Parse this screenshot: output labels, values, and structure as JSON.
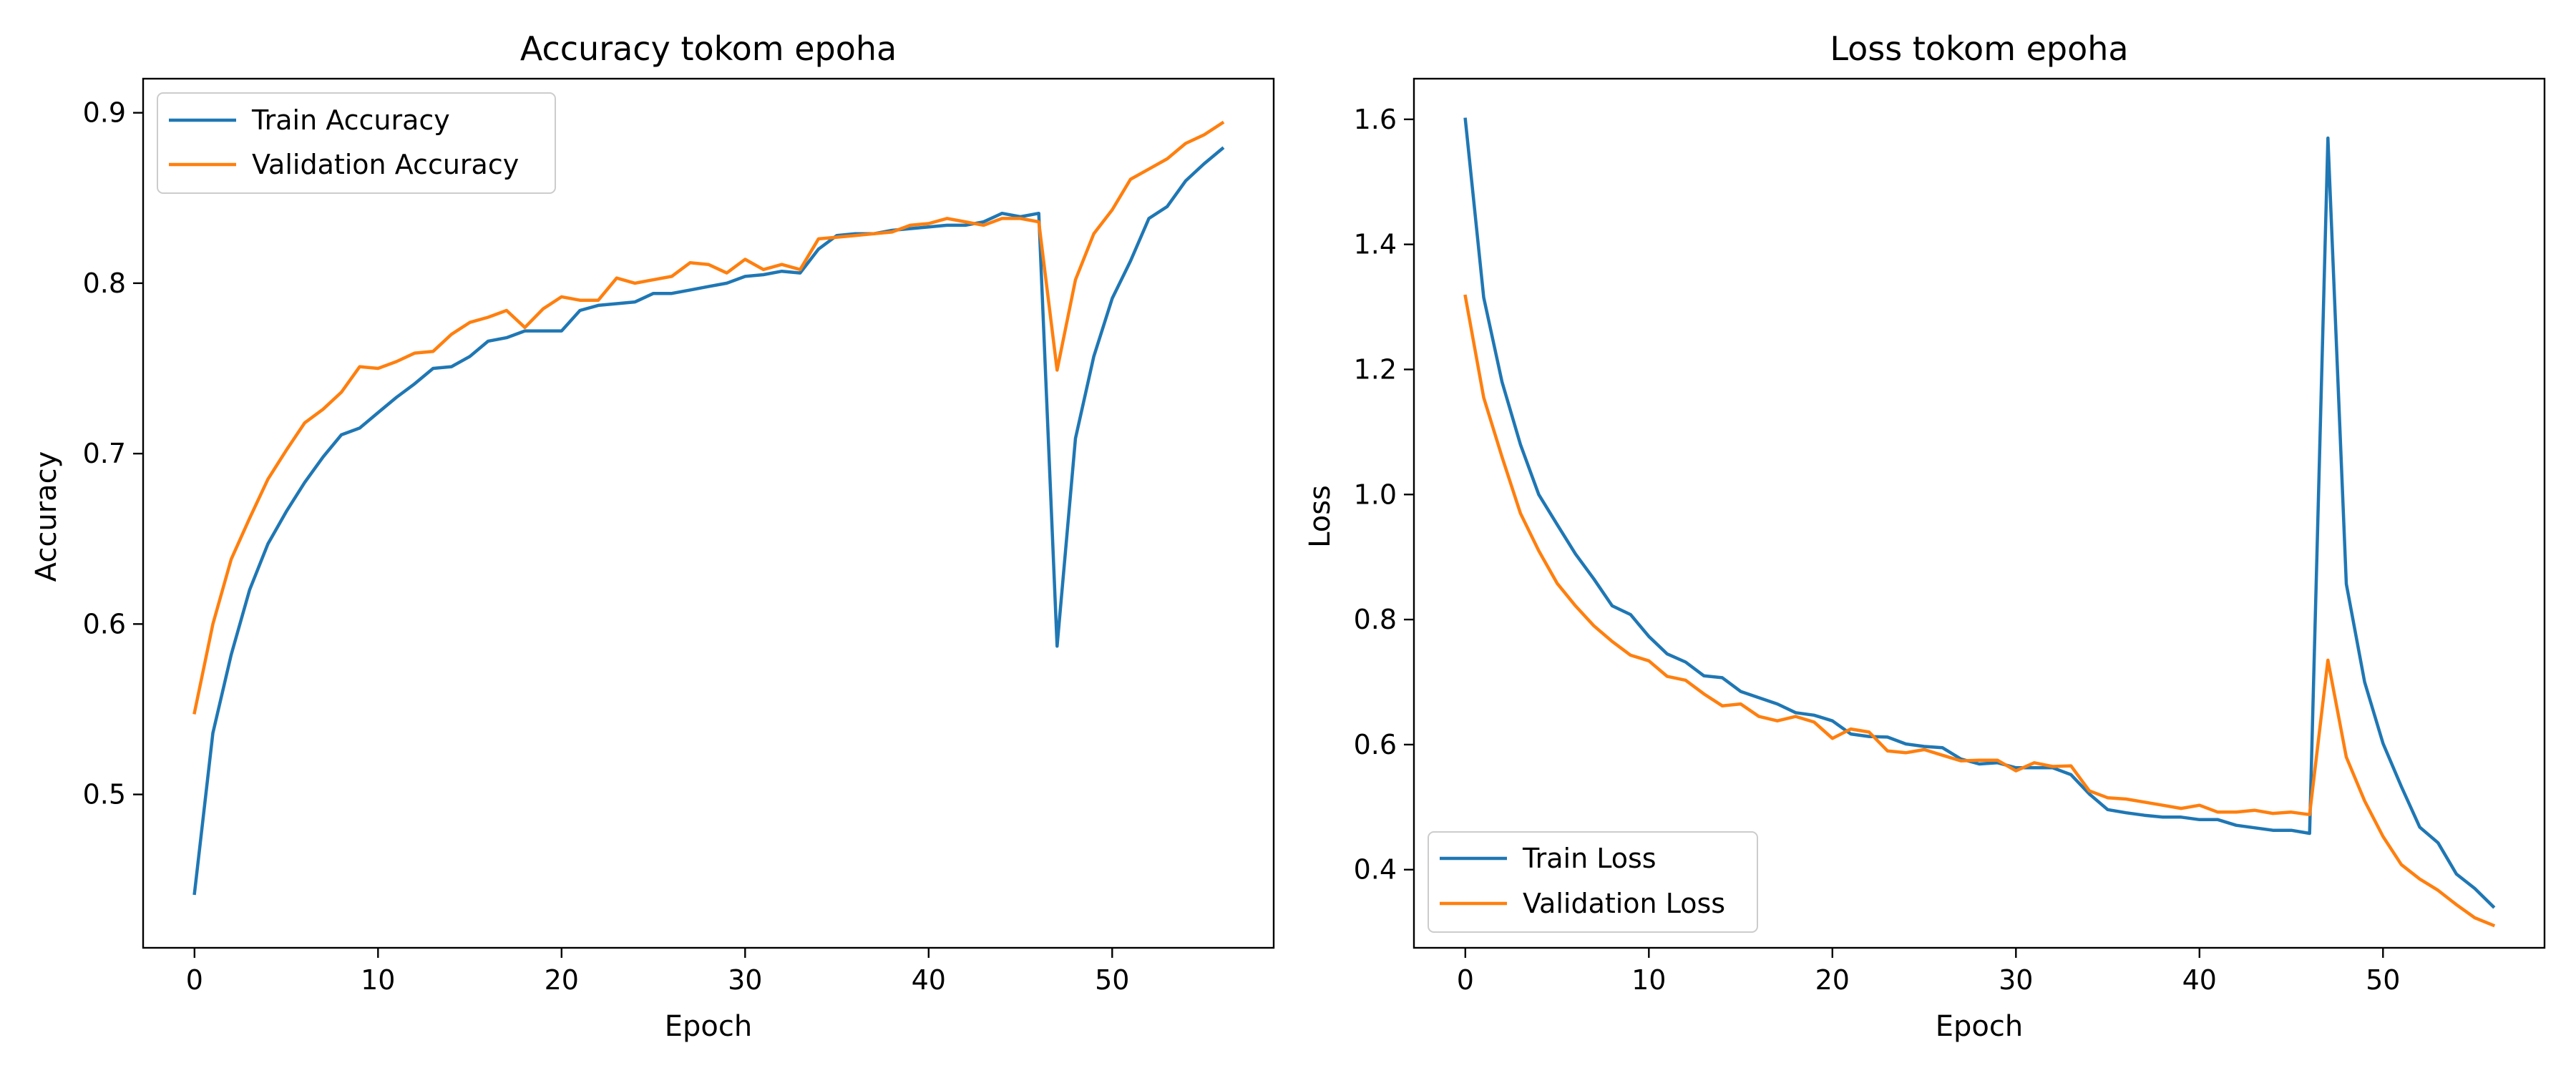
{
  "colors": {
    "train": "#1f77b4",
    "validation": "#ff7f0e"
  },
  "chart_data": [
    {
      "type": "line",
      "title": "Accuracy tokom epoha",
      "xlabel": "Epoch",
      "ylabel": "Accuracy",
      "xlim": [
        -2.8,
        58.8
      ],
      "ylim": [
        0.41,
        0.92
      ],
      "xticks": [
        0,
        10,
        20,
        30,
        40,
        50
      ],
      "yticks": [
        0.5,
        0.6,
        0.7,
        0.8,
        0.9
      ],
      "grid": false,
      "legend_position": "upper left",
      "x": [
        0,
        1,
        2,
        3,
        4,
        5,
        6,
        7,
        8,
        9,
        10,
        11,
        12,
        13,
        14,
        15,
        16,
        17,
        18,
        19,
        20,
        21,
        22,
        23,
        24,
        25,
        26,
        27,
        28,
        29,
        30,
        31,
        32,
        33,
        34,
        35,
        36,
        37,
        38,
        39,
        40,
        41,
        42,
        43,
        44,
        45,
        46,
        47,
        48,
        49,
        50,
        51,
        52,
        53,
        54,
        55,
        56
      ],
      "series": [
        {
          "name": "Train Accuracy",
          "color": "#1f77b4",
          "values": [
            0.442,
            0.536,
            0.582,
            0.62,
            0.647,
            0.666,
            0.683,
            0.698,
            0.711,
            0.715,
            0.724,
            0.733,
            0.741,
            0.75,
            0.751,
            0.757,
            0.766,
            0.768,
            0.772,
            0.772,
            0.772,
            0.784,
            0.787,
            0.788,
            0.789,
            0.794,
            0.794,
            0.796,
            0.798,
            0.8,
            0.804,
            0.805,
            0.807,
            0.806,
            0.82,
            0.828,
            0.829,
            0.829,
            0.831,
            0.832,
            0.833,
            0.834,
            0.834,
            0.836,
            0.841,
            0.839,
            0.841,
            0.587,
            0.709,
            0.757,
            0.791,
            0.813,
            0.838,
            0.845,
            0.86,
            0.87,
            0.879
          ]
        },
        {
          "name": "Validation Accuracy",
          "color": "#ff7f0e",
          "values": [
            0.548,
            0.6,
            0.638,
            0.662,
            0.685,
            0.702,
            0.718,
            0.726,
            0.736,
            0.751,
            0.75,
            0.754,
            0.759,
            0.76,
            0.77,
            0.777,
            0.78,
            0.784,
            0.774,
            0.785,
            0.792,
            0.79,
            0.79,
            0.803,
            0.8,
            0.802,
            0.804,
            0.812,
            0.811,
            0.806,
            0.814,
            0.808,
            0.811,
            0.808,
            0.826,
            0.827,
            0.828,
            0.829,
            0.83,
            0.834,
            0.835,
            0.838,
            0.836,
            0.834,
            0.838,
            0.838,
            0.836,
            0.749,
            0.802,
            0.829,
            0.843,
            0.861,
            0.867,
            0.873,
            0.882,
            0.887,
            0.894
          ]
        }
      ]
    },
    {
      "type": "line",
      "title": "Loss tokom epoha",
      "xlabel": "Epoch",
      "ylabel": "Loss",
      "xlim": [
        -2.8,
        58.8
      ],
      "ylim": [
        0.275,
        1.665
      ],
      "xticks": [
        0,
        10,
        20,
        30,
        40,
        50
      ],
      "yticks": [
        0.4,
        0.6,
        0.8,
        1.0,
        1.2,
        1.4,
        1.6
      ],
      "grid": false,
      "legend_position": "lower left",
      "x": [
        0,
        1,
        2,
        3,
        4,
        5,
        6,
        7,
        8,
        9,
        10,
        11,
        12,
        13,
        14,
        15,
        16,
        17,
        18,
        19,
        20,
        21,
        22,
        23,
        24,
        25,
        26,
        27,
        28,
        29,
        30,
        31,
        32,
        33,
        34,
        35,
        36,
        37,
        38,
        39,
        40,
        41,
        42,
        43,
        44,
        45,
        46,
        47,
        48,
        49,
        50,
        51,
        52,
        53,
        54,
        55,
        56
      ],
      "series": [
        {
          "name": "Train Loss",
          "color": "#1f77b4",
          "values": [
            1.6,
            1.315,
            1.18,
            1.08,
            1.0,
            0.952,
            0.905,
            0.865,
            0.822,
            0.808,
            0.773,
            0.745,
            0.732,
            0.71,
            0.707,
            0.685,
            0.675,
            0.665,
            0.651,
            0.647,
            0.638,
            0.617,
            0.613,
            0.612,
            0.601,
            0.597,
            0.595,
            0.577,
            0.569,
            0.571,
            0.563,
            0.563,
            0.563,
            0.552,
            0.521,
            0.496,
            0.491,
            0.487,
            0.484,
            0.484,
            0.48,
            0.48,
            0.471,
            0.467,
            0.463,
            0.463,
            0.458,
            1.57,
            0.857,
            0.7,
            0.602,
            0.533,
            0.468,
            0.443,
            0.393,
            0.37,
            0.341
          ]
        },
        {
          "name": "Validation Loss",
          "color": "#ff7f0e",
          "values": [
            1.317,
            1.155,
            1.06,
            0.97,
            0.91,
            0.858,
            0.822,
            0.79,
            0.765,
            0.743,
            0.734,
            0.709,
            0.703,
            0.681,
            0.662,
            0.665,
            0.645,
            0.638,
            0.645,
            0.636,
            0.61,
            0.625,
            0.62,
            0.59,
            0.587,
            0.592,
            0.583,
            0.574,
            0.575,
            0.575,
            0.558,
            0.571,
            0.565,
            0.566,
            0.526,
            0.515,
            0.513,
            0.508,
            0.503,
            0.498,
            0.503,
            0.492,
            0.492,
            0.495,
            0.49,
            0.492,
            0.488,
            0.735,
            0.58,
            0.51,
            0.453,
            0.408,
            0.385,
            0.367,
            0.344,
            0.323,
            0.311
          ]
        }
      ]
    }
  ]
}
